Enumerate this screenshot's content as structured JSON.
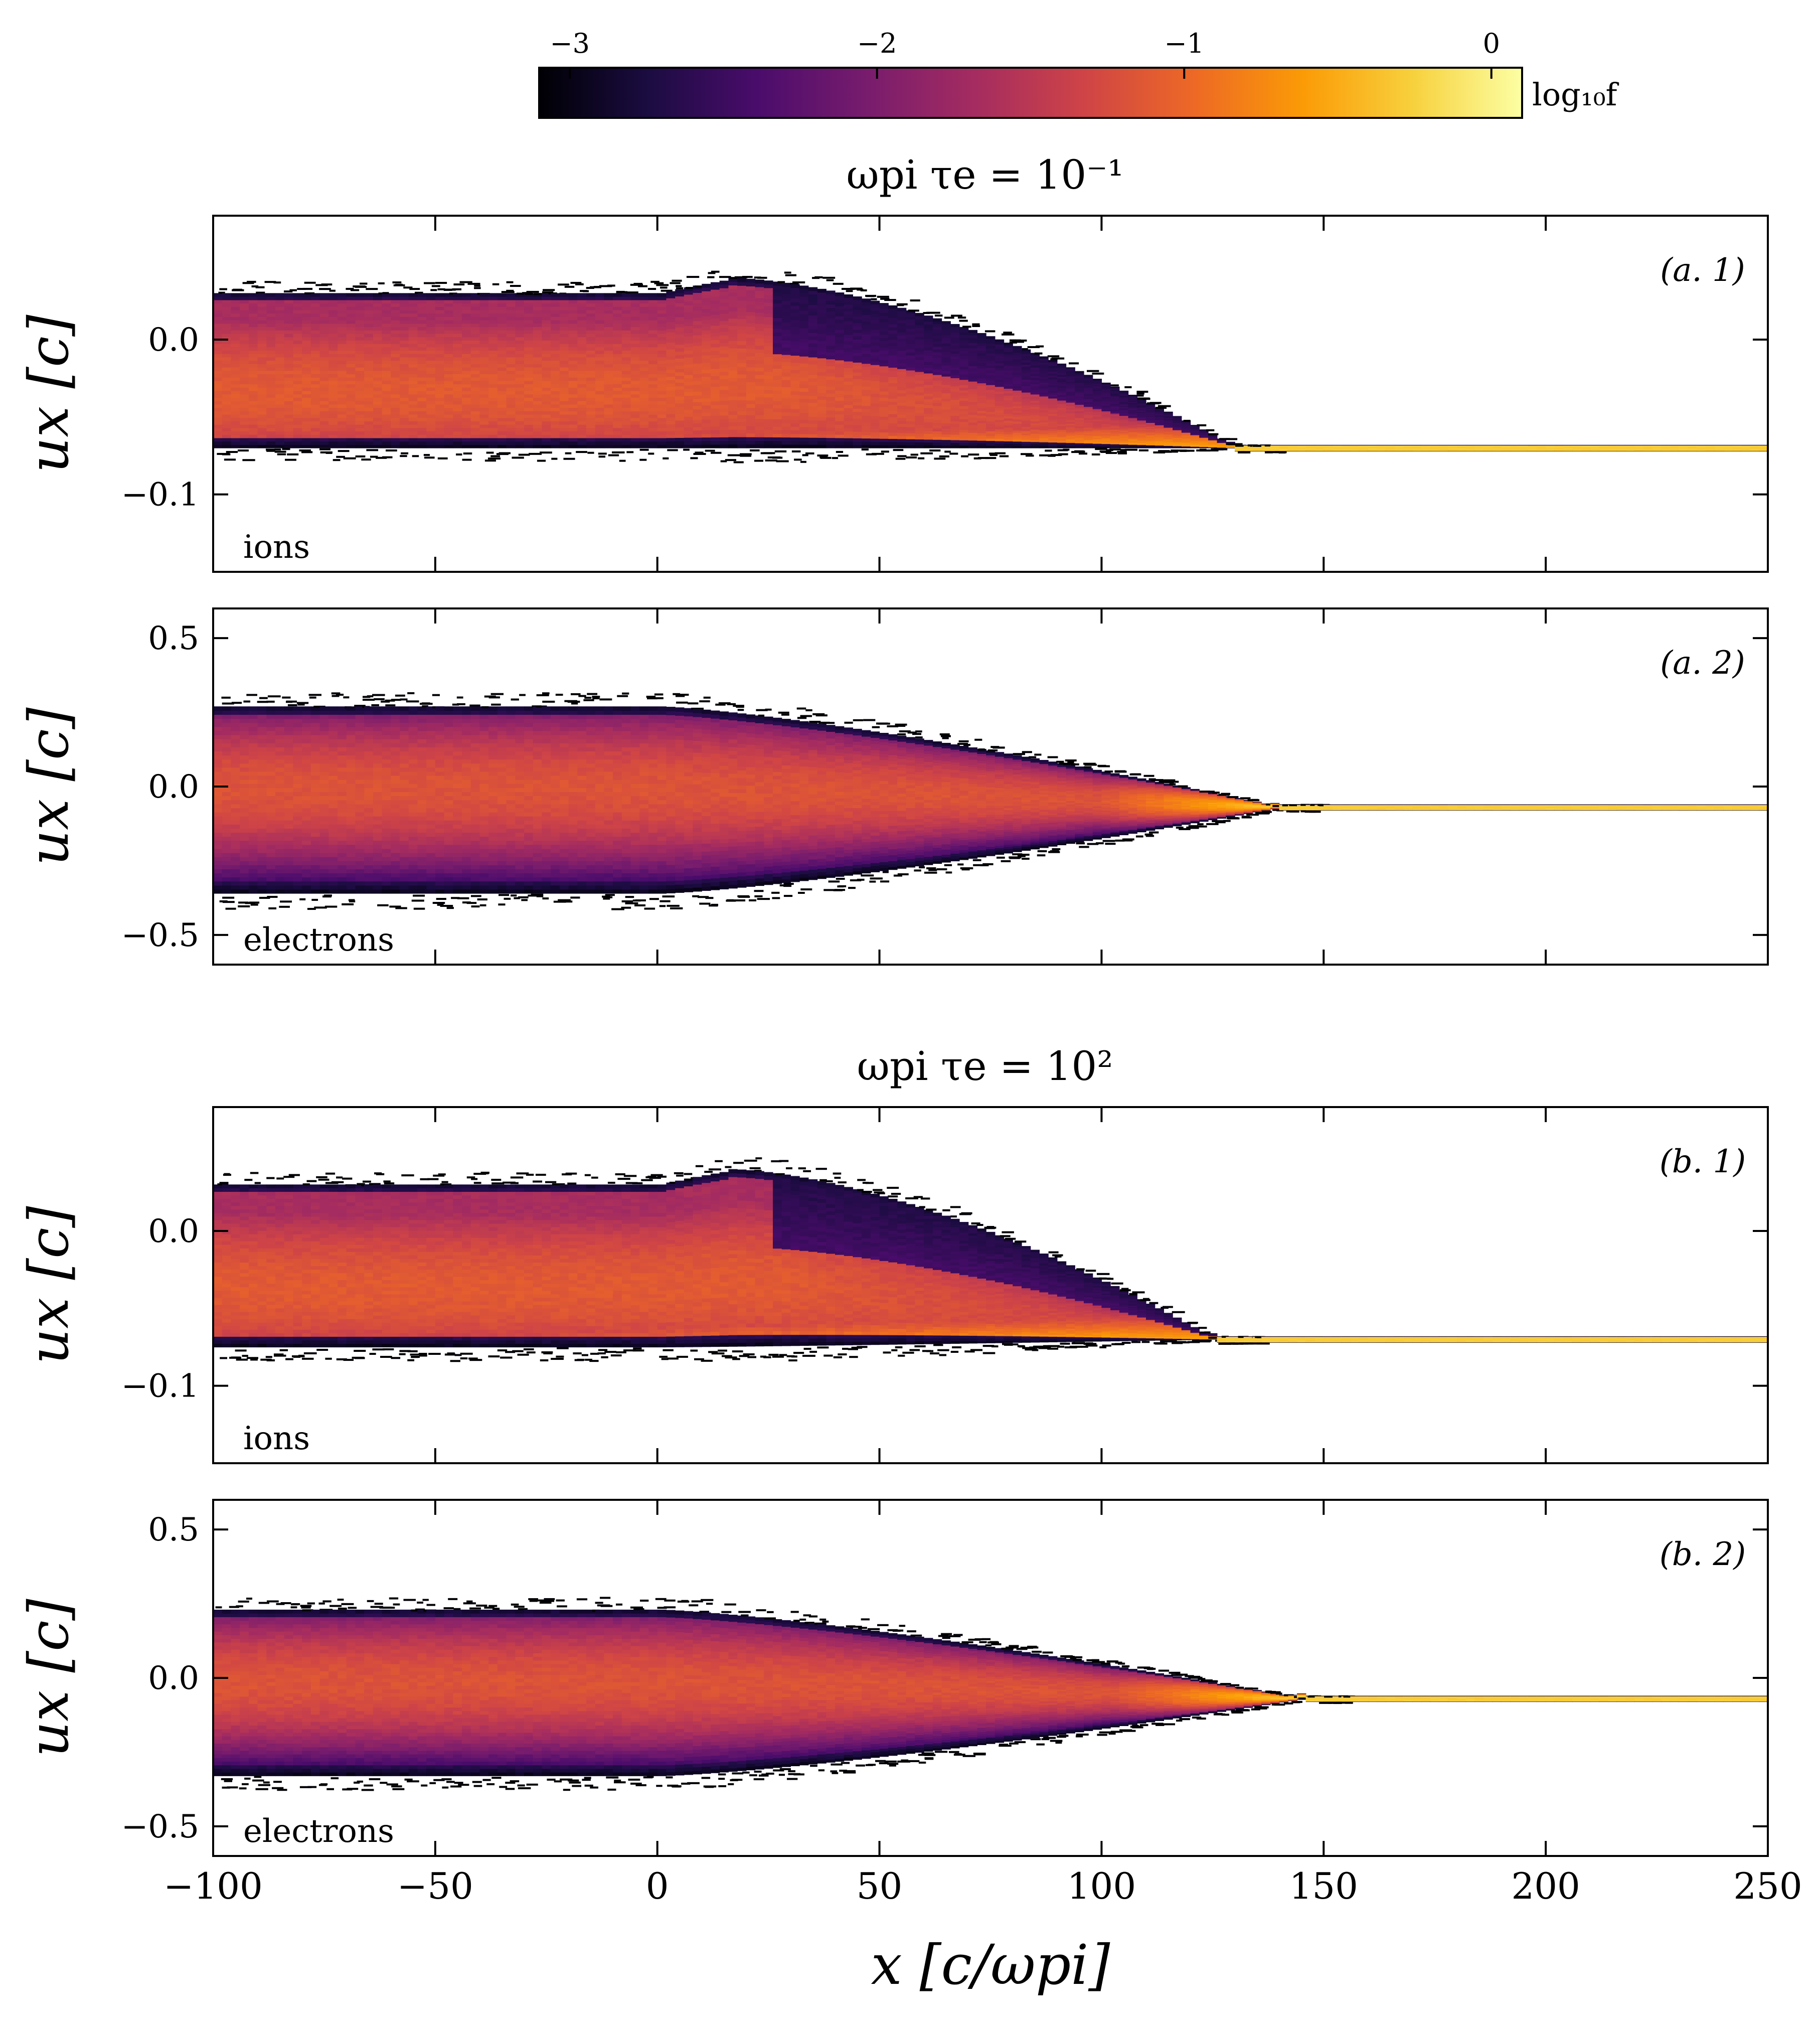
{
  "colorbar": {
    "label": "log₁₀f",
    "ticks": [
      -3,
      -2,
      -1,
      0
    ],
    "tick_labels": [
      "−3",
      "−2",
      "−1",
      "0"
    ],
    "range": [
      -3.1,
      0.1
    ],
    "colormap": "inferno",
    "colors": [
      "#000004",
      "#1b0c41",
      "#4a0c6b",
      "#781c6d",
      "#a52c60",
      "#cf4446",
      "#ed6925",
      "#fb9b06",
      "#f7d13d",
      "#fcffa4"
    ]
  },
  "groups": [
    {
      "title": "ωpi τe = 10⁻¹"
    },
    {
      "title": "ωpi τe = 10²"
    }
  ],
  "x_axis": {
    "label": "x [c/ωpi]",
    "range": [
      -100,
      250
    ],
    "ticks": [
      -100,
      -50,
      0,
      50,
      100,
      150,
      200,
      250
    ],
    "tick_labels": [
      "−100",
      "−50",
      "0",
      "50",
      "100",
      "150",
      "200",
      "250"
    ]
  },
  "chart_data": [
    {
      "type": "heatmap",
      "panel_label": "(a. 1)",
      "species": "ions",
      "ylabel": "ux [c]",
      "xlim": [
        -100,
        250
      ],
      "ylim": [
        -0.15,
        0.08
      ],
      "yticks": [
        -0.1,
        0.0
      ],
      "ytick_labels": [
        "−0.1",
        "0.0"
      ],
      "beam_ux": -0.07,
      "upstream_core_ux": [
        -0.07,
        0.03
      ],
      "hot_region_extent_x": 130
    },
    {
      "type": "heatmap",
      "panel_label": "(a. 2)",
      "species": "electrons",
      "ylabel": "ux [c]",
      "xlim": [
        -100,
        250
      ],
      "ylim": [
        -0.6,
        0.6
      ],
      "yticks": [
        -0.5,
        0.0,
        0.5
      ],
      "ytick_labels": [
        "−0.5",
        "0.0",
        "0.5"
      ],
      "beam_ux": -0.07,
      "upstream_core_ux": [
        -0.36,
        0.27
      ],
      "hot_region_extent_x": 140
    },
    {
      "type": "heatmap",
      "panel_label": "(b. 1)",
      "species": "ions",
      "ylabel": "ux [c]",
      "xlim": [
        -100,
        250
      ],
      "ylim": [
        -0.15,
        0.08
      ],
      "yticks": [
        -0.1,
        0.0
      ],
      "ytick_labels": [
        "−0.1",
        "0.0"
      ],
      "beam_ux": -0.07,
      "upstream_core_ux": [
        -0.075,
        0.03
      ],
      "hot_region_extent_x": 125
    },
    {
      "type": "heatmap",
      "panel_label": "(b. 2)",
      "species": "electrons",
      "ylabel": "ux [c]",
      "xlim": [
        -100,
        250
      ],
      "ylim": [
        -0.6,
        0.6
      ],
      "yticks": [
        -0.5,
        0.0,
        0.5
      ],
      "ytick_labels": [
        "−0.5",
        "0.0",
        "0.5"
      ],
      "beam_ux": -0.07,
      "upstream_core_ux": [
        -0.33,
        0.23
      ],
      "hot_region_extent_x": 145
    }
  ]
}
